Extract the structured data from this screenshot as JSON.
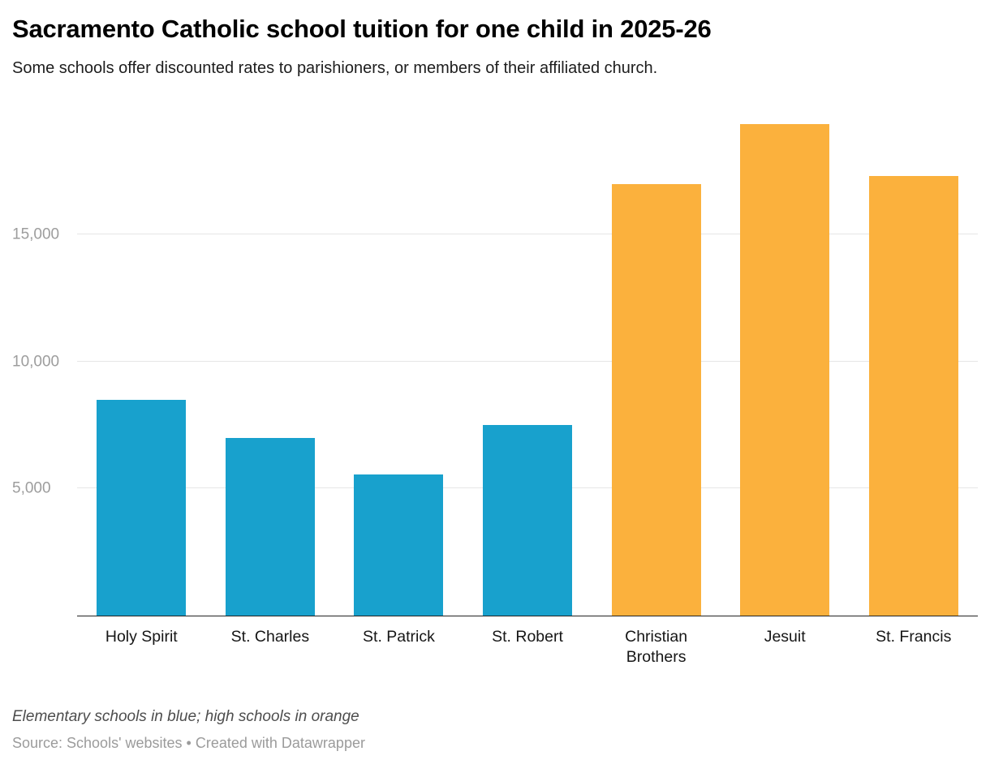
{
  "header": {
    "title": "Sacramento Catholic school tuition for one child in 2025-26",
    "subtitle": "Some schools offer discounted rates to parishioners, or members of their affiliated church."
  },
  "chart_data": {
    "type": "bar",
    "title": "Sacramento Catholic school tuition for one child in 2025-26",
    "subtitle": "Some schools offer discounted rates to parishioners, or members of their affiliated church.",
    "categories": [
      "Holy Spirit",
      "St. Charles",
      "St. Patrick",
      "St. Robert",
      "Christian Brothers",
      "Jesuit",
      "St. Francis"
    ],
    "values": [
      8500,
      7000,
      5550,
      7500,
      17000,
      19350,
      17300
    ],
    "bar_colors": [
      "#18a1cd",
      "#18a1cd",
      "#18a1cd",
      "#18a1cd",
      "#fbb13d",
      "#fbb13d",
      "#fbb13d"
    ],
    "groups": [
      {
        "name": "Elementary schools",
        "color": "#18a1cd"
      },
      {
        "name": "High schools",
        "color": "#fbb13d"
      }
    ],
    "yticks": [
      5000,
      10000,
      15000
    ],
    "ytick_labels": [
      "5,000",
      "10,000",
      "15,000"
    ],
    "ylim": [
      0,
      20000
    ],
    "grid": true,
    "xlabel": "",
    "ylabel": "",
    "legend_position": "none"
  },
  "footer": {
    "note": "Elementary schools in blue; high schools in orange",
    "source_label": "Source: Schools' websites",
    "separator": " • ",
    "attribution": "Created with Datawrapper"
  }
}
